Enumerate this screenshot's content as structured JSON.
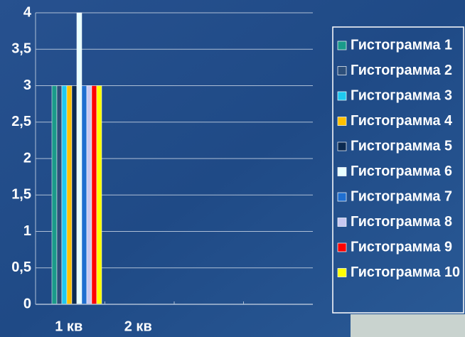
{
  "chart_data": {
    "type": "bar",
    "categories": [
      "1 кв",
      "2 кв",
      null,
      null
    ],
    "series": [
      {
        "name": "Гистограмма 1",
        "color": "#1a9a8a",
        "values": [
          3,
          null,
          null,
          null
        ]
      },
      {
        "name": "Гистограмма 2",
        "color": "#2d4f7a",
        "values": [
          3,
          null,
          null,
          null
        ]
      },
      {
        "name": "Гистограмма 3",
        "color": "#1ec8f0",
        "values": [
          3,
          null,
          null,
          null
        ]
      },
      {
        "name": "Гистограмма 4",
        "color": "#ffc000",
        "values": [
          3,
          null,
          null,
          null
        ]
      },
      {
        "name": "Гистограмма 5",
        "color": "#0b2a50",
        "values": [
          3,
          null,
          null,
          null
        ]
      },
      {
        "name": "Гистограмма 6",
        "color": "#e8ffff",
        "values": [
          4,
          null,
          null,
          null
        ]
      },
      {
        "name": "Гистограмма 7",
        "color": "#1f6fd0",
        "values": [
          3,
          null,
          null,
          null
        ]
      },
      {
        "name": "Гистограмма 8",
        "color": "#c8c8f0",
        "values": [
          3,
          null,
          null,
          null
        ]
      },
      {
        "name": "Гистограмма 9",
        "color": "#ff0000",
        "values": [
          3,
          null,
          null,
          null
        ]
      },
      {
        "name": "Гистограмма 10",
        "color": "#ffff00",
        "values": [
          3,
          null,
          null,
          null
        ]
      }
    ],
    "ylim": [
      0,
      4
    ],
    "yticks": [
      0,
      {
        "value": 0.5,
        "label": "0,5"
      },
      1,
      {
        "value": 1.5,
        "label": "1,5"
      },
      2,
      {
        "value": 2.5,
        "label": "2,5"
      },
      3,
      {
        "value": 3.5,
        "label": "3,5"
      },
      4
    ],
    "grid": true,
    "legend": "right"
  }
}
